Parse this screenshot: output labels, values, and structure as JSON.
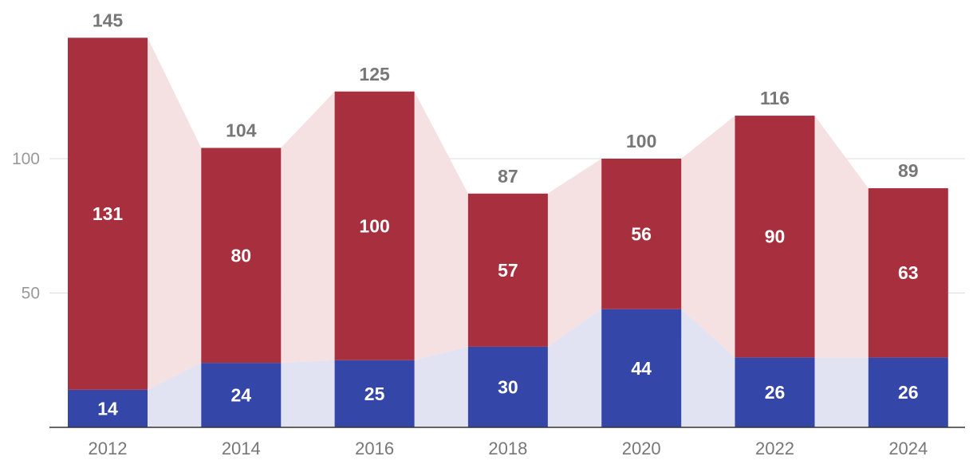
{
  "chart_data": {
    "type": "bar",
    "stacked": true,
    "categories": [
      "2012",
      "2014",
      "2016",
      "2018",
      "2020",
      "2022",
      "2024"
    ],
    "series": [
      {
        "values": [
          14,
          24,
          25,
          30,
          44,
          26,
          26
        ],
        "color": "#3446a8",
        "area_color": "#e1e3f3"
      },
      {
        "values": [
          131,
          80,
          100,
          57,
          56,
          90,
          63
        ],
        "color": "#a82f3d",
        "area_color": "#f5e0e2"
      }
    ],
    "totals": [
      145,
      104,
      125,
      87,
      100,
      116,
      89
    ],
    "yticks": [
      50,
      100
    ],
    "ylim": [
      0,
      160
    ],
    "grid": true,
    "legend": "none",
    "title": "",
    "xlabel": "",
    "ylabel": ""
  }
}
